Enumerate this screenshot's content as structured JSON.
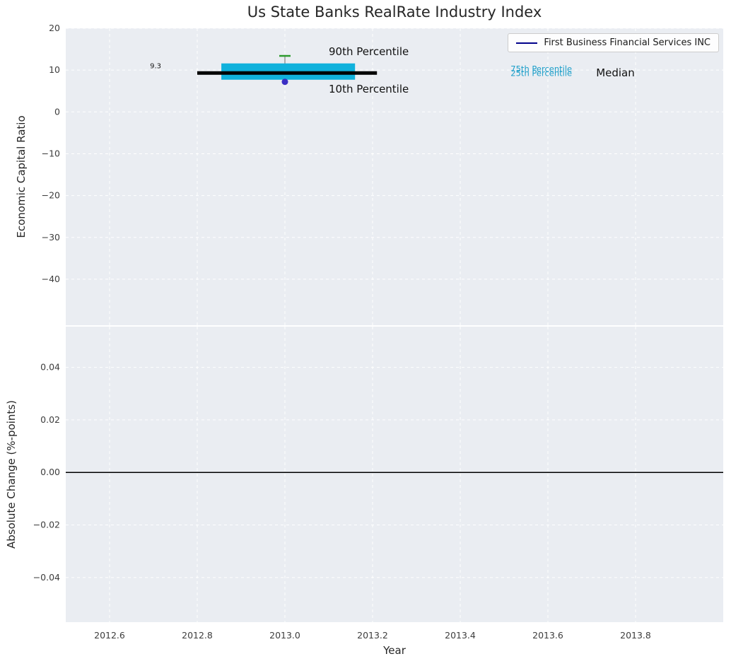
{
  "chart_data": {
    "type": "boxplot",
    "title": "Us State Banks RealRate Industry Index",
    "x_axis": {
      "label": "Year",
      "lim": [
        2012.5,
        2014.0
      ],
      "ticks": [
        2012.6,
        2012.8,
        2013.0,
        2013.2,
        2013.4,
        2013.6,
        2013.8
      ],
      "tick_labels": [
        "2012.6",
        "2012.8",
        "2013.0",
        "2013.2",
        "2013.4",
        "2013.6",
        "2013.8"
      ]
    },
    "legend": {
      "entries": [
        {
          "label": "First Business Financial Services INC",
          "color": "#00008b"
        }
      ]
    },
    "colors": {
      "plot_bg": "#eaedf2",
      "grid": "#ffffff",
      "tick_text": "#3d3d3d",
      "title_text": "#262626",
      "median": "#000000",
      "box_fill": "#10b1dc",
      "whisker": "#999999",
      "cap": "#2e9b2e",
      "p10_marker": "#3b2fc4",
      "zero_line": "#000000"
    },
    "subplots": [
      {
        "name": "economic-capital-ratio",
        "ylabel": "Economic Capital Ratio",
        "ylim": [
          -51,
          20
        ],
        "yticks": [
          20,
          10,
          0,
          -10,
          -20,
          -30,
          -40
        ],
        "ytick_labels": [
          "20",
          "10",
          "0",
          "−10",
          "−20",
          "−30",
          "−40"
        ],
        "box": {
          "year": 2013.0,
          "median": 9.3,
          "p25": 7.7,
          "p75": 11.6,
          "p10": 7.2,
          "p90": 13.4,
          "median_span": [
            2012.8,
            2013.21
          ],
          "box_span": [
            2012.855,
            2013.16
          ]
        },
        "series": [
          {
            "name": "First Business Financial Services INC",
            "x": [
              2013.0
            ],
            "y": [
              9.3
            ]
          }
        ],
        "annotations": [
          {
            "text": "9.3",
            "x": 2012.705,
            "y": 11.0,
            "size": 10,
            "color": "#1a1a1a",
            "anchor": "middle"
          },
          {
            "text": "90th Percentile",
            "x": 2013.1,
            "y": 14.4,
            "size": 15,
            "color": "#111111",
            "anchor": "start"
          },
          {
            "text": "10th Percentile",
            "x": 2013.1,
            "y": 5.4,
            "size": 15,
            "color": "#111111",
            "anchor": "start"
          },
          {
            "text": "75th Percentile",
            "x": 2013.515,
            "y": 10.2,
            "size": 11.5,
            "color": "#1b9ec9",
            "anchor": "start"
          },
          {
            "text": "25th Percentile",
            "x": 2013.515,
            "y": 9.2,
            "size": 11.5,
            "color": "#1b9ec9",
            "anchor": "start"
          },
          {
            "text": "Median",
            "x": 2013.71,
            "y": 9.3,
            "size": 15,
            "color": "#111111",
            "anchor": "start"
          }
        ]
      },
      {
        "name": "absolute-change",
        "ylabel": "Absolute Change (%-points)",
        "ylim": [
          -0.057,
          0.0555
        ],
        "yticks": [
          0.04,
          0.02,
          0.0,
          -0.02,
          -0.04
        ],
        "ytick_labels": [
          "0.04",
          "0.02",
          "0.00",
          "−0.02",
          "−0.04"
        ],
        "zero_line": 0.0
      }
    ]
  }
}
